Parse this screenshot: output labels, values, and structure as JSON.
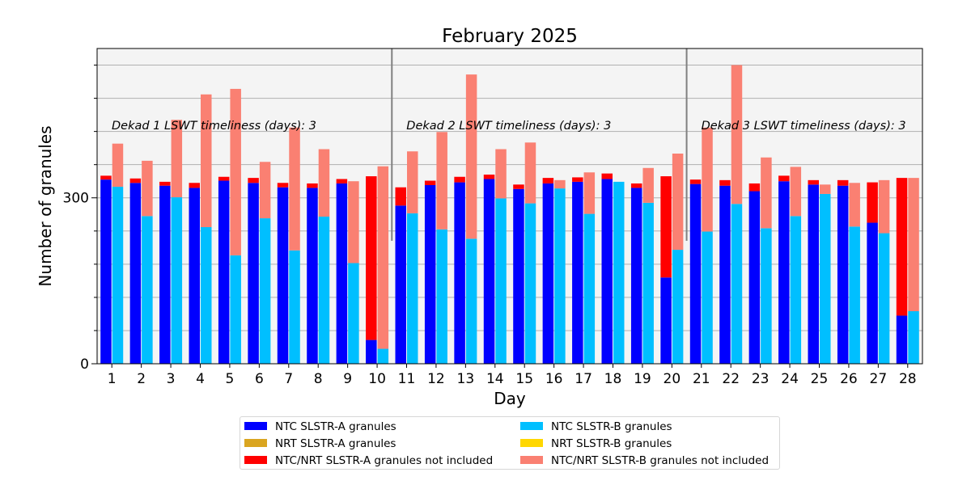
{
  "chart_data": {
    "type": "bar",
    "title": "February 2025",
    "xlabel": "Day",
    "ylabel": "Number of granules",
    "categories": [
      "1",
      "2",
      "3",
      "4",
      "5",
      "6",
      "7",
      "8",
      "9",
      "10",
      "11",
      "12",
      "13",
      "14",
      "15",
      "16",
      "17",
      "18",
      "19",
      "20",
      "21",
      "22",
      "23",
      "24",
      "25",
      "26",
      "27",
      "28"
    ],
    "ylim": [
      0,
      570
    ],
    "y_major_ticks": [
      0,
      300
    ],
    "y_minor_ticks": [
      60,
      120,
      180,
      240,
      360,
      420,
      480,
      540
    ],
    "grid": "horizontal",
    "background": "#f4f4f4",
    "dekad_dividers_after_day": [
      10,
      20
    ],
    "annotations": [
      {
        "text": "Dekad 1 LSWT timeliness (days): 3",
        "start_day": 1
      },
      {
        "text": "Dekad 2 LSWT timeliness (days): 3",
        "start_day": 11
      },
      {
        "text": "Dekad 3 LSWT timeliness (days): 3",
        "start_day": 21
      }
    ],
    "series": [
      {
        "name": "NTC SLSTR-A granules",
        "color": "#0000ff",
        "group": "A",
        "values": [
          333,
          327,
          322,
          318,
          331,
          327,
          319,
          318,
          326,
          43,
          286,
          323,
          328,
          334,
          316,
          326,
          329,
          334,
          318,
          156,
          325,
          322,
          312,
          330,
          324,
          322,
          255,
          87
        ]
      },
      {
        "name": "NRT SLSTR-A granules",
        "color": "#daa520",
        "group": "A",
        "values": [
          0,
          0,
          0,
          0,
          0,
          0,
          0,
          0,
          0,
          0,
          0,
          0,
          0,
          0,
          0,
          0,
          0,
          0,
          0,
          0,
          0,
          0,
          0,
          0,
          0,
          0,
          0,
          0
        ]
      },
      {
        "name": "NTC/NRT SLSTR-A granules not included",
        "color": "#ff0000",
        "group": "A",
        "values": [
          7,
          8,
          7,
          9,
          7,
          9,
          8,
          8,
          8,
          296,
          33,
          8,
          10,
          8,
          8,
          10,
          8,
          10,
          8,
          183,
          8,
          10,
          14,
          10,
          8,
          10,
          73,
          249
        ]
      },
      {
        "name": "NTC SLSTR-B granules",
        "color": "#00bfff",
        "group": "B",
        "values": [
          320,
          267,
          301,
          247,
          196,
          263,
          205,
          266,
          182,
          27,
          272,
          243,
          226,
          299,
          290,
          317,
          271,
          329,
          291,
          206,
          239,
          289,
          245,
          267,
          307,
          248,
          236,
          95
        ]
      },
      {
        "name": "NRT SLSTR-B granules",
        "color": "#ffd700",
        "group": "B",
        "values": [
          0,
          0,
          0,
          0,
          0,
          0,
          0,
          0,
          0,
          0,
          0,
          0,
          0,
          0,
          0,
          0,
          0,
          0,
          0,
          0,
          0,
          0,
          0,
          0,
          0,
          0,
          0,
          0
        ]
      },
      {
        "name": "NTC/NRT SLSTR-B granules not included",
        "color": "#fa8072",
        "group": "B",
        "values": [
          78,
          100,
          140,
          240,
          301,
          102,
          222,
          122,
          148,
          330,
          112,
          176,
          297,
          89,
          110,
          15,
          75,
          0,
          63,
          174,
          188,
          251,
          128,
          89,
          17,
          79,
          96,
          241
        ]
      }
    ]
  }
}
